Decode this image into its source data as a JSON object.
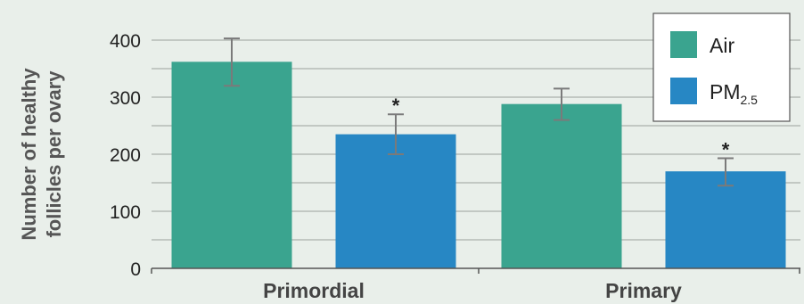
{
  "chart_data": {
    "type": "bar",
    "title": "",
    "ylabel_lines": [
      "Number of healthy",
      "follicles per ovary"
    ],
    "xlabel": "",
    "categories": [
      "Primordial",
      "Primary"
    ],
    "ylim": [
      0,
      400
    ],
    "yticks": [
      0,
      100,
      200,
      300,
      400
    ],
    "grid": true,
    "legend_position": "top-right",
    "series": [
      {
        "name": "Air",
        "name_main": "Air",
        "name_sub": "",
        "color": "#3aa48f",
        "values": [
          362,
          288
        ],
        "error_low": [
          320,
          260
        ],
        "error_high": [
          403,
          315
        ],
        "significance": [
          "",
          ""
        ]
      },
      {
        "name": "PM2.5",
        "name_main": "PM",
        "name_sub": "2.5",
        "color": "#2787c4",
        "values": [
          235,
          170
        ],
        "error_low": [
          200,
          145
        ],
        "error_high": [
          270,
          193
        ],
        "significance": [
          "*",
          "*"
        ]
      }
    ]
  }
}
